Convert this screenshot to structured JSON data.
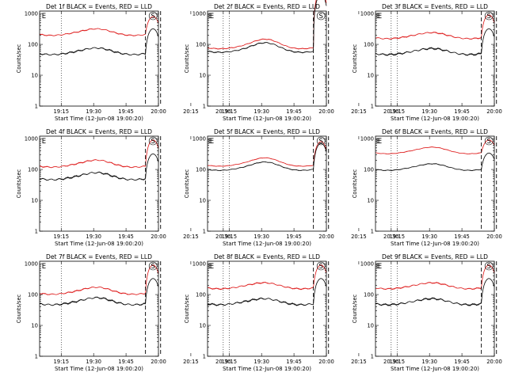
{
  "chart_data": {
    "type": "line",
    "layout": "3x3 grid of panels",
    "series_legend": {
      "black": "Events",
      "red": "LLD"
    },
    "colors": {
      "events": "#000000",
      "lld": "#dd1111"
    },
    "shared": {
      "xlabel": "Start Time (12-Jun-08 19:00:20)",
      "ylabel": "Counts/sec",
      "y_scale": "log",
      "ylim": [
        1,
        1200
      ],
      "y_ticks": [
        "1",
        "10",
        "100",
        "1000"
      ],
      "x_range_minutes": [
        -15,
        40
      ],
      "x_ticks": [
        {
          "label": "19:15",
          "min": -5
        },
        {
          "label": "19:30",
          "min": 10
        },
        {
          "label": "19:45",
          "min": 25
        },
        {
          "label": "20:00",
          "min": 40
        },
        {
          "label": "20:15",
          "min": 55
        },
        {
          "label": "20:30",
          "min": 70
        }
      ],
      "dotted_lines_min": [
        -5,
        70
      ],
      "dashed_lines_min": [
        34,
        41
      ],
      "markers": [
        {
          "label": "E",
          "min": -13
        },
        {
          "label": "S",
          "min": 37.5
        },
        {
          "label": "E",
          "min": 64
        }
      ]
    },
    "panels": [
      {
        "title": "Det 1f BLACK = Events, RED = LLD",
        "events_base": 55,
        "lld_base": 230,
        "events_peak": 320,
        "lld_peak": 800,
        "bump": 0.25,
        "noise": 0.07
      },
      {
        "title": "Det 2f BLACK = Events, RED = LLD",
        "events_base": 65,
        "lld_base": 85,
        "events_peak": 4000,
        "lld_peak": 5000,
        "bump": 0.6,
        "noise": 0.05
      },
      {
        "title": "Det 3f BLACK = Events, RED = LLD",
        "events_base": 55,
        "lld_base": 180,
        "events_peak": 320,
        "lld_peak": 900,
        "bump": 0.2,
        "noise": 0.08
      },
      {
        "title": "Det 4f BLACK = Events, RED = LLD",
        "events_base": 55,
        "lld_base": 140,
        "events_peak": 320,
        "lld_peak": 900,
        "bump": 0.3,
        "noise": 0.08
      },
      {
        "title": "Det 5f BLACK = Events, RED = LLD",
        "events_base": 110,
        "lld_base": 150,
        "events_peak": 700,
        "lld_peak": 800,
        "bump": 0.45,
        "noise": 0.03
      },
      {
        "title": "Det 6f BLACK = Events, RED = LLD",
        "events_base": 110,
        "lld_base": 380,
        "events_peak": 340,
        "lld_peak": 900,
        "bump": 0.25,
        "noise": 0.03
      },
      {
        "title": "Det 7f BLACK = Events, RED = LLD",
        "events_base": 55,
        "lld_base": 120,
        "events_peak": 330,
        "lld_peak": 900,
        "bump": 0.3,
        "noise": 0.08
      },
      {
        "title": "Det 8f BLACK = Events, RED = LLD",
        "events_base": 55,
        "lld_base": 180,
        "events_peak": 330,
        "lld_peak": 900,
        "bump": 0.2,
        "noise": 0.08
      },
      {
        "title": "Det 9f BLACK = Events, RED = LLD",
        "events_base": 55,
        "lld_base": 180,
        "events_peak": 330,
        "lld_peak": 900,
        "bump": 0.2,
        "noise": 0.08
      }
    ]
  }
}
